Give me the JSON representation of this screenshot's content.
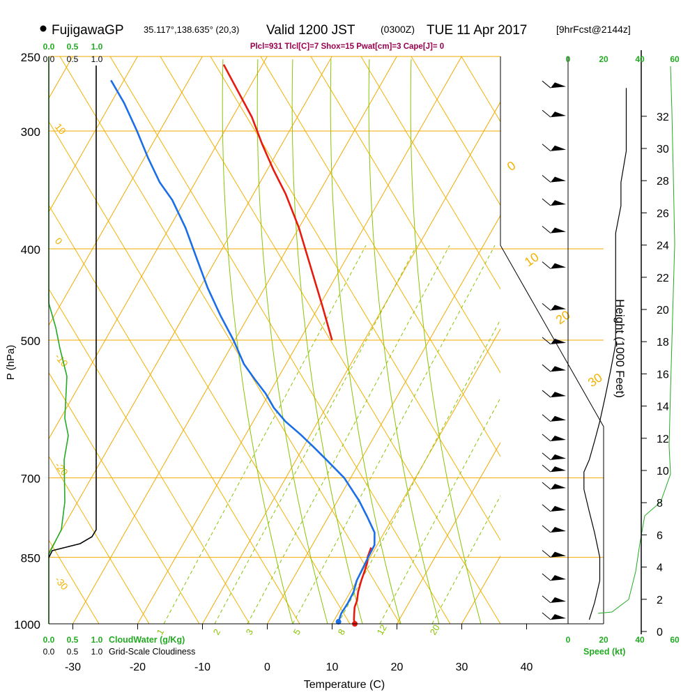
{
  "header": {
    "station": "FujigawaGP",
    "coords": "35.117°,138.635° (20,3)",
    "valid": "Valid 1200 JST",
    "utc": "(0300Z)",
    "date": "TUE 11 Apr 2017",
    "fcst": "[9hrFcst@2144z]"
  },
  "indices": "Plcl=931 Tlcl[C]=7 Shox=15 Pwat[cm]=3 Cape[J]= 0",
  "colors": {
    "isotherm_isobar": "#f2a900",
    "dry_adiabat": "#f2b300",
    "moist_adiabat": "#88c400",
    "mixing_ratio": "#88c400",
    "temperature": "#e8190e",
    "dewpoint": "#1a6ee8",
    "cloud_water": "#22aa22",
    "cloudiness": "#000000",
    "indices": "#99004d",
    "green_label": "#22aa22"
  },
  "chart_data": {
    "type": "line",
    "title": "",
    "xlabel": "Temperature (C)",
    "ylabel": "P (hPa)",
    "right_ylabel": "Height (1000 Feet)",
    "x_ticks": [
      -30,
      -20,
      -10,
      0,
      10,
      20,
      30,
      40
    ],
    "pressure_ticks": [
      250,
      300,
      400,
      500,
      700,
      850,
      1000
    ],
    "height_ticks": [
      0,
      2,
      4,
      6,
      8,
      10,
      12,
      14,
      16,
      18,
      20,
      22,
      24,
      26,
      28,
      30,
      32
    ],
    "dry_adiabat_labels": [
      "10",
      "0",
      "-10",
      "-20",
      "-30"
    ],
    "moist_adiabat_labels": [
      "0",
      "10",
      "20",
      "30"
    ],
    "mixing_ratio_labels": [
      "1",
      "2",
      "3",
      "5",
      "8",
      "12",
      "20"
    ],
    "top_scale": [
      "0.0",
      "0.5",
      "1.0"
    ],
    "bottom_scale_green": [
      "0.0",
      "0.5",
      "1.0"
    ],
    "bottom_scale_black": [
      "0.0",
      "0.5",
      "1.0"
    ],
    "cloud_water_label": "CloudWater (g/Kg)",
    "cloudiness_label": "Grid-Scale Cloudiness",
    "wind_ticks": [
      "0",
      "20",
      "40",
      "60"
    ],
    "wind_label": "Speed (kt)",
    "series": [
      {
        "name": "Temperature",
        "points": [
          [
            1000,
            13.5
          ],
          [
            990,
            13.0
          ],
          [
            975,
            12.5
          ],
          [
            960,
            12.0
          ],
          [
            945,
            11.8
          ],
          [
            925,
            11.2
          ],
          [
            900,
            10.7
          ],
          [
            875,
            10.3
          ],
          [
            860,
            10.0
          ],
          [
            850,
            9.6
          ],
          [
            830,
            9.3
          ]
        ]
      },
      {
        "name": "Upper temperature",
        "points": [
          [
            500,
            -15.0
          ],
          [
            460,
            -19.5
          ],
          [
            420,
            -24.5
          ],
          [
            380,
            -30.0
          ],
          [
            350,
            -35.0
          ],
          [
            330,
            -39.0
          ],
          [
            310,
            -43.0
          ],
          [
            290,
            -47.0
          ],
          [
            270,
            -52.0
          ],
          [
            255,
            -56.0
          ]
        ]
      },
      {
        "name": "Dew point",
        "points": [
          [
            995,
            10.8
          ],
          [
            975,
            10.5
          ],
          [
            950,
            10.6
          ],
          [
            925,
            10.5
          ],
          [
            900,
            10.0
          ],
          [
            850,
            9.7
          ],
          [
            825,
            9.6
          ],
          [
            800,
            8.5
          ],
          [
            770,
            6.0
          ],
          [
            740,
            3.3
          ],
          [
            700,
            -1.0
          ],
          [
            670,
            -5.3
          ],
          [
            650,
            -8.3
          ],
          [
            630,
            -11.5
          ],
          [
            610,
            -15.0
          ],
          [
            590,
            -18.0
          ],
          [
            570,
            -20.5
          ],
          [
            550,
            -23.5
          ],
          [
            530,
            -26.5
          ],
          [
            500,
            -30.2
          ],
          [
            470,
            -34.5
          ],
          [
            440,
            -38.8
          ],
          [
            410,
            -43.0
          ],
          [
            380,
            -47.5
          ],
          [
            355,
            -52.0
          ],
          [
            340,
            -55.5
          ],
          [
            320,
            -59.5
          ],
          [
            300,
            -63.5
          ],
          [
            280,
            -68.0
          ],
          [
            265,
            -72.0
          ]
        ]
      }
    ],
    "wind_barbs": [
      {
        "p": 270,
        "speed": 55
      },
      {
        "p": 290,
        "speed": 55
      },
      {
        "p": 315,
        "speed": 55
      },
      {
        "p": 340,
        "speed": 50
      },
      {
        "p": 360,
        "speed": 50
      },
      {
        "p": 385,
        "speed": 45
      },
      {
        "p": 420,
        "speed": 45
      },
      {
        "p": 465,
        "speed": 45
      },
      {
        "p": 505,
        "speed": 45
      },
      {
        "p": 540,
        "speed": 40
      },
      {
        "p": 575,
        "speed": 35
      },
      {
        "p": 610,
        "speed": 30
      },
      {
        "p": 640,
        "speed": 25
      },
      {
        "p": 670,
        "speed": 20
      },
      {
        "p": 690,
        "speed": 15
      },
      {
        "p": 720,
        "speed": 15
      },
      {
        "p": 760,
        "speed": 20
      },
      {
        "p": 800,
        "speed": 25
      },
      {
        "p": 850,
        "speed": 30
      },
      {
        "p": 900,
        "speed": 30
      },
      {
        "p": 950,
        "speed": 25
      },
      {
        "p": 990,
        "speed": 20
      }
    ]
  }
}
